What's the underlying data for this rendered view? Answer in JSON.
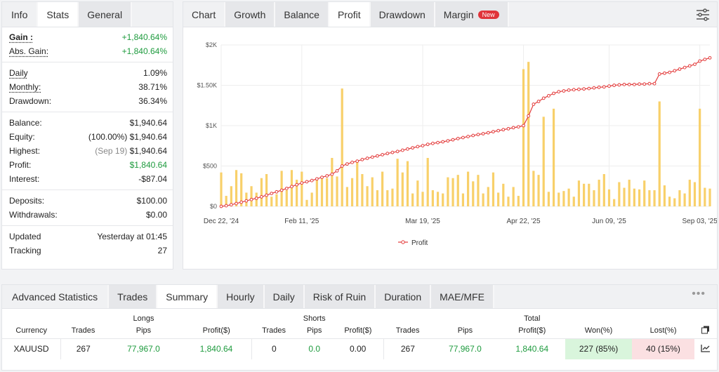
{
  "info_panel": {
    "tabs": [
      "Info",
      "Stats",
      "General"
    ],
    "active_tab": 1,
    "rows": [
      {
        "label": "Gain :",
        "value": "+1,840.64%",
        "style": "bold",
        "green": true
      },
      {
        "label": "Abs. Gain:",
        "value": "+1,840.64%",
        "style": "u",
        "green": true
      },
      {
        "sep": true
      },
      {
        "label": "Daily",
        "value": "1.09%",
        "style": "u"
      },
      {
        "label": "Monthly:",
        "value": "38.71%",
        "style": "u"
      },
      {
        "label": "Drawdown:",
        "value": "36.34%"
      },
      {
        "sep": true
      },
      {
        "label": "Balance:",
        "value": "$1,940.64"
      },
      {
        "label": "Equity:",
        "pre": "(100.00%)",
        "value": "$1,940.64"
      },
      {
        "label": "Highest:",
        "pre": "(Sep 19)",
        "pre_grey": true,
        "value": "$1,940.64"
      },
      {
        "label": "Profit:",
        "value": "$1,840.64",
        "green": true
      },
      {
        "label": "Interest:",
        "value": "-$87.04"
      },
      {
        "sep": true
      },
      {
        "label": "Deposits:",
        "value": "$100.00"
      },
      {
        "label": "Withdrawals:",
        "value": "$0.00"
      },
      {
        "sep": true
      },
      {
        "label": "Updated",
        "value": "Yesterday at 01:45"
      },
      {
        "label": "Tracking",
        "value": "27"
      }
    ]
  },
  "chart_panel": {
    "tabs": [
      "Chart",
      "Growth",
      "Balance",
      "Profit",
      "Drawdown",
      "Margin"
    ],
    "active_tab": 3,
    "new_badge": "New",
    "settings_icon": "sliders-icon"
  },
  "chart_data": {
    "type": "bar+line",
    "y_ticks": [
      "$0",
      "$500",
      "$1K",
      "$1.50K",
      "$2K"
    ],
    "y_tick_values": [
      0,
      500,
      1000,
      1500,
      2000
    ],
    "ylim": [
      0,
      2000
    ],
    "x_ticks": [
      "Dec 22, '24",
      "Feb 11, '25",
      "Mar 19, '25",
      "Apr 22, '25",
      "Jun 09, '25",
      "Sep 03, '25"
    ],
    "x_tick_index": [
      0,
      16,
      40,
      60,
      77,
      95
    ],
    "bar_color": "#f8d06a",
    "line_color": "#e33b3b",
    "legend": "Profit",
    "bars": [
      420,
      130,
      250,
      450,
      410,
      170,
      250,
      170,
      350,
      400,
      120,
      150,
      440,
      200,
      450,
      330,
      430,
      80,
      170,
      350,
      350,
      350,
      600,
      370,
      1460,
      240,
      350,
      560,
      400,
      250,
      360,
      200,
      430,
      200,
      220,
      590,
      420,
      560,
      160,
      320,
      180,
      600,
      200,
      180,
      160,
      360,
      350,
      390,
      160,
      430,
      310,
      390,
      160,
      240,
      420,
      170,
      280,
      120,
      240,
      130,
      1700,
      1790,
      440,
      390,
      1110,
      180,
      1210,
      170,
      190,
      220,
      120,
      320,
      280,
      280,
      200,
      330,
      400,
      210,
      90,
      300,
      230,
      330,
      220,
      210,
      320,
      200,
      200,
      1300,
      260,
      120,
      100,
      200,
      160,
      330,
      300,
      1210,
      230,
      220
    ],
    "cumulative": [
      0,
      8,
      20,
      35,
      52,
      68,
      85,
      100,
      118,
      138,
      160,
      180,
      200,
      222,
      245,
      268,
      290,
      305,
      320,
      340,
      360,
      378,
      398,
      440,
      500,
      525,
      545,
      560,
      580,
      595,
      610,
      625,
      640,
      655,
      668,
      680,
      695,
      710,
      725,
      740,
      752,
      768,
      780,
      790,
      800,
      812,
      825,
      840,
      852,
      865,
      878,
      890,
      900,
      912,
      925,
      938,
      950,
      962,
      975,
      985,
      1000,
      1120,
      1265,
      1300,
      1340,
      1370,
      1400,
      1420,
      1430,
      1440,
      1445,
      1450,
      1455,
      1460,
      1468,
      1475,
      1480,
      1490,
      1500,
      1505,
      1510,
      1510,
      1510,
      1515,
      1515,
      1520,
      1520,
      1640,
      1650,
      1660,
      1680,
      1700,
      1720,
      1740,
      1760,
      1800,
      1820,
      1840
    ]
  },
  "adv_panel": {
    "title": "Advanced Statistics",
    "tabs": [
      "Trades",
      "Summary",
      "Hourly",
      "Daily",
      "Risk of Ruin",
      "Duration",
      "MAE/MFE"
    ],
    "active_tab": 1,
    "groups": [
      "Longs",
      "Shorts",
      "Total"
    ],
    "headers": [
      "Currency",
      "Trades",
      "Pips",
      "Profit($)",
      "Trades",
      "Pips",
      "Profit($)",
      "Trades",
      "Pips",
      "Profit($)",
      "Won(%)",
      "Lost(%)"
    ],
    "row": [
      "XAUUSD",
      "267",
      "77,967.0",
      "1,840.64",
      "0",
      "0.0",
      "0.00",
      "267",
      "77,967.0",
      "1,840.64",
      "227 (85%)",
      "40 (15%)"
    ],
    "colors": {
      "won_bg": "#d9f5dc",
      "lost_bg": "#fbe0e2"
    }
  }
}
